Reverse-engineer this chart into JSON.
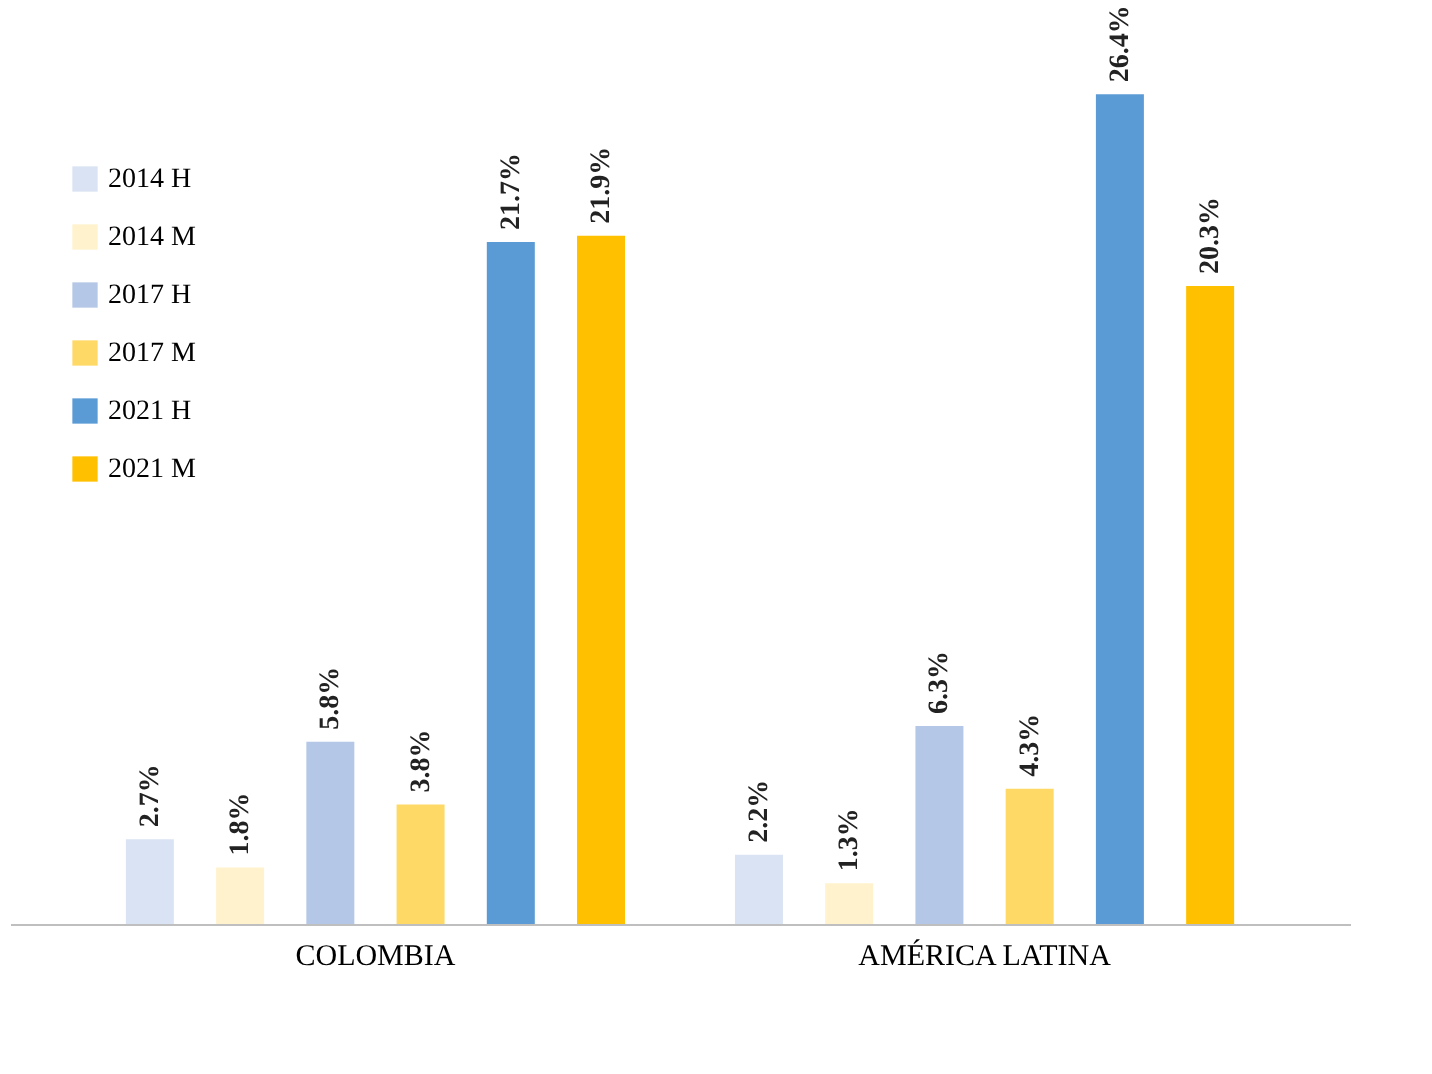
{
  "chart_data": {
    "type": "bar",
    "categories": [
      "COLOMBIA",
      "AMÉRICA LATINA"
    ],
    "series": [
      {
        "name": "2014 H",
        "color": "#dae3f3",
        "values": [
          2.7,
          2.2
        ],
        "value_labels": [
          "2.7%",
          "2.2%"
        ]
      },
      {
        "name": "2014 M",
        "color": "#fff2cc",
        "values": [
          1.8,
          1.3
        ],
        "value_labels": [
          "1.8%",
          "1.3%"
        ]
      },
      {
        "name": "2017 H",
        "color": "#b4c7e7",
        "values": [
          5.8,
          6.3
        ],
        "value_labels": [
          "5.8%",
          "6.3%"
        ]
      },
      {
        "name": "2017 M",
        "color": "#ffd966",
        "values": [
          3.8,
          4.3
        ],
        "value_labels": [
          "3.8%",
          "4.3%"
        ]
      },
      {
        "name": "2021 H",
        "color": "#5b9bd5",
        "values": [
          21.7,
          26.4
        ],
        "value_labels": [
          "21.7%",
          "26.4%"
        ]
      },
      {
        "name": "2021 M",
        "color": "#ffc000",
        "values": [
          21.9,
          20.3
        ],
        "value_labels": [
          "21.9%",
          "20.3%"
        ]
      }
    ],
    "tick_labels": "x",
    "legend": "top left",
    "grid": false
  }
}
